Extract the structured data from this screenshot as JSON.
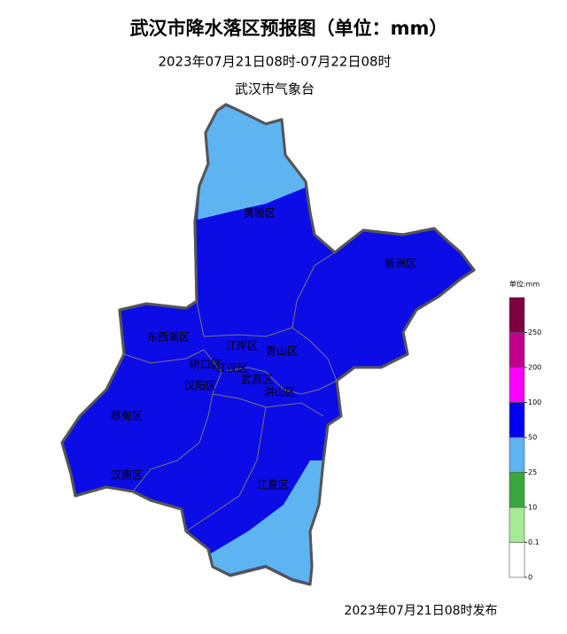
{
  "header": {
    "title": "武汉市降水落区预报图（单位：mm）",
    "period": "2023年07月21日08时-07月22日08时",
    "issuer": "武汉市气象台"
  },
  "map": {
    "districts": [
      "黄陂区",
      "新洲区",
      "东西湖区",
      "江岸区",
      "青山区",
      "硚口区",
      "江汉区",
      "汉阳区",
      "武昌区",
      "洪山区",
      "蔡甸区",
      "汉南区",
      "江夏区"
    ]
  },
  "legend": {
    "unit": "单位:mm",
    "colors": [
      "#7d0040",
      "#c0008c",
      "#ff00ff",
      "#0000f0",
      "#5eb4f0",
      "#38a83c",
      "#a4eb94",
      "#ffffff"
    ],
    "ticks": [
      "250",
      "200",
      "100",
      "50",
      "25",
      "10",
      "0.1",
      "0"
    ]
  },
  "footer": "2023年07月21日08时发布"
}
